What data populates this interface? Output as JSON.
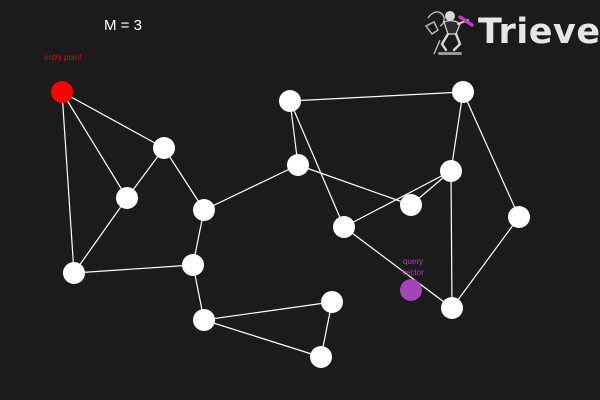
{
  "header": {
    "param": "M = 3"
  },
  "brand": {
    "name": "Trieve",
    "mascot_icon": "skateboarder-mascot-icon"
  },
  "labels": {
    "entry": "entry point",
    "query": "query vector"
  },
  "colors": {
    "background": "#1b1b1b",
    "node": "#ffffff",
    "edge": "#ffffff",
    "entry": "#ff0000",
    "query": "#a743b8"
  },
  "graph": {
    "nodes": [
      "entry",
      "n1",
      "n2",
      "n3",
      "n4",
      "n5",
      "n6",
      "n7",
      "n8",
      "n9",
      "n10",
      "n11",
      "n12",
      "n13",
      "n14",
      "n15",
      "n16"
    ],
    "edges": [
      [
        "entry",
        "n1"
      ],
      [
        "entry",
        "n2"
      ],
      [
        "entry",
        "n3"
      ],
      [
        "n1",
        "n2"
      ],
      [
        "n2",
        "n3"
      ],
      [
        "n1",
        "n4"
      ],
      [
        "n3",
        "n5"
      ],
      [
        "n4",
        "n5"
      ],
      [
        "n5",
        "n6"
      ],
      [
        "n6",
        "n7"
      ],
      [
        "n6",
        "n8"
      ],
      [
        "n7",
        "n8"
      ],
      [
        "n4",
        "n9"
      ],
      [
        "n9",
        "n10"
      ],
      [
        "n10",
        "n11"
      ],
      [
        "n9",
        "n12"
      ],
      [
        "n12",
        "n13"
      ],
      [
        "n11",
        "n13"
      ],
      [
        "n13",
        "n14"
      ],
      [
        "n14",
        "n11"
      ],
      [
        "n10",
        "n15"
      ],
      [
        "n15",
        "n16"
      ],
      [
        "n15",
        "n13"
      ],
      [
        "n16",
        "n14"
      ]
    ]
  }
}
